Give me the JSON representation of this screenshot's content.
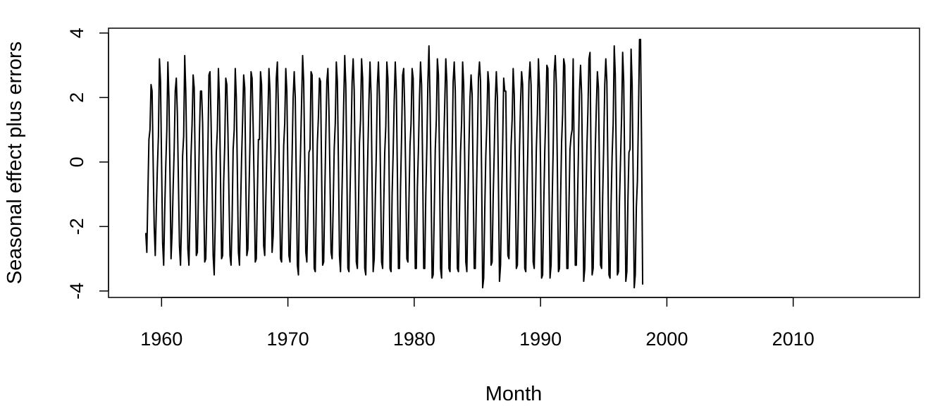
{
  "chart_data": {
    "type": "line",
    "title": "",
    "xlabel": "Month",
    "ylabel": "Seasonal effect plus errors",
    "xlim": [
      1955.8,
      2020.0
    ],
    "ylim": [
      -4.2,
      4.15
    ],
    "x_ticks": [
      1960,
      1970,
      1980,
      1990,
      2000,
      2010
    ],
    "x_tick_labels": [
      "1960",
      "1970",
      "1980",
      "1990",
      "2000",
      "2010"
    ],
    "y_ticks": [
      -4,
      -2,
      0,
      2,
      4
    ],
    "y_tick_labels": [
      "-4",
      "-2",
      "0",
      "2",
      "4"
    ],
    "grid": false,
    "legend": "none",
    "x_start": 1958.75,
    "x_step": 0.0833333,
    "y_values": [
      -2.2,
      -2.8,
      -1.0,
      0.7,
      1.0,
      2.4,
      2.2,
      0.0,
      -2.0,
      -2.9,
      -1.5,
      -0.2,
      0.8,
      3.2,
      2.5,
      0.0,
      -2.5,
      -3.2,
      -1.5,
      -0.1,
      1.0,
      3.1,
      2.0,
      -0.4,
      -3.0,
      -2.2,
      -0.8,
      0.4,
      2.2,
      2.6,
      1.5,
      -0.6,
      -2.6,
      -3.2,
      -1.8,
      0.2,
      0.8,
      3.3,
      2.2,
      0.0,
      -2.7,
      -3.2,
      -1.6,
      0.2,
      1.2,
      2.7,
      2.3,
      -0.3,
      -2.9,
      -2.8,
      -1.0,
      0.9,
      2.2,
      2.2,
      1.2,
      -1.0,
      -3.1,
      -3.0,
      -1.3,
      0.4,
      2.7,
      2.8,
      1.3,
      -0.6,
      -2.9,
      -3.5,
      -1.8,
      0.3,
      1.0,
      2.9,
      1.9,
      -0.5,
      -3.0,
      -2.9,
      -0.6,
      0.5,
      2.6,
      2.4,
      1.0,
      -1.0,
      -2.9,
      -3.2,
      -1.8,
      0.4,
      1.0,
      2.9,
      2.0,
      -0.3,
      -2.8,
      -3.2,
      -1.5,
      0.1,
      1.3,
      2.7,
      2.3,
      -0.5,
      -2.9,
      -2.7,
      -1.0,
      0.6,
      2.8,
      2.6,
      1.1,
      -0.8,
      -3.1,
      -3.0,
      -1.0,
      0.7,
      0.7,
      2.8,
      2.4,
      0.2,
      -2.6,
      -2.9,
      -1.2,
      0.3,
      1.4,
      2.9,
      2.2,
      -0.2,
      -2.8,
      -2.3,
      -0.8,
      0.4,
      2.6,
      3.1,
      1.6,
      -0.7,
      -3.0,
      -3.1,
      -1.4,
      0.5,
      1.2,
      2.9,
      2.2,
      -0.3,
      -2.9,
      -3.1,
      -1.5,
      0.2,
      2.0,
      2.8,
      2.0,
      -0.6,
      -3.2,
      -3.5,
      -1.0,
      0.3,
      1.8,
      3.3,
      2.5,
      0.1,
      -2.8,
      -3.1,
      -1.6,
      0.3,
      0.4,
      2.8,
      2.7,
      -0.1,
      -3.3,
      -3.4,
      -1.2,
      0.6,
      1.4,
      2.6,
      2.5,
      -0.2,
      -3.2,
      -3.1,
      -1.1,
      0.8,
      2.5,
      2.9,
      1.6,
      -0.5,
      -2.8,
      -3.0,
      -1.4,
      0.4,
      1.2,
      3.1,
      2.5,
      0.0,
      -2.9,
      -3.4,
      -1.6,
      0.1,
      1.8,
      3.3,
      2.4,
      -0.2,
      -3.3,
      -3.4,
      -1.0,
      0.6,
      2.5,
      3.2,
      2.2,
      -0.4,
      -3.1,
      -3.3,
      -1.5,
      0.6,
      1.3,
      3.2,
      2.6,
      0.1,
      -3.3,
      -3.5,
      -1.2,
      0.4,
      1.9,
      3.1,
      2.1,
      -0.6,
      -3.4,
      -3.0,
      -1.2,
      0.3,
      2.4,
      3.1,
      2.0,
      -0.5,
      -3.1,
      -3.3,
      -1.4,
      0.3,
      1.1,
      3.1,
      2.6,
      0.2,
      -3.3,
      -3.4,
      -1.0,
      0.3,
      1.9,
      3.1,
      2.2,
      -0.3,
      -3.3,
      -3.3,
      -0.8,
      0.8,
      2.7,
      2.9,
      1.6,
      -0.6,
      -3.0,
      -3.1,
      -1.2,
      0.5,
      1.2,
      2.9,
      2.6,
      0.0,
      -3.3,
      -3.3,
      -0.8,
      0.4,
      2.0,
      3.1,
      2.4,
      -0.1,
      -3.3,
      -3.3,
      -1.0,
      0.5,
      2.5,
      3.6,
      2.0,
      -0.6,
      -3.6,
      -3.5,
      -1.6,
      0.4,
      1.3,
      3.2,
      2.7,
      0.1,
      -3.3,
      -3.6,
      -1.1,
      0.5,
      1.8,
      3.2,
      2.5,
      -0.2,
      -3.3,
      -3.4,
      -1.3,
      0.3,
      2.5,
      3.1,
      2.2,
      -0.4,
      -3.3,
      -3.4,
      -1.6,
      0.3,
      1.2,
      3.1,
      2.4,
      0.0,
      -3.1,
      -3.4,
      -1.3,
      0.5,
      2.0,
      2.7,
      2.1,
      -0.5,
      -3.3,
      -3.3,
      -1.2,
      0.6,
      2.6,
      3.1,
      2.5,
      -0.3,
      -3.9,
      -3.6,
      -1.5,
      0.2,
      1.2,
      2.8,
      2.4,
      0.1,
      -3.2,
      -3.1,
      -1.1,
      0.3,
      1.9,
      2.8,
      2.0,
      -0.7,
      -3.7,
      -3.2,
      -1.2,
      0.5,
      2.6,
      2.2,
      2.2,
      -0.8,
      -2.9,
      -3.0,
      -1.2,
      0.5,
      1.3,
      2.9,
      2.1,
      -0.1,
      -3.3,
      -3.2,
      -1.4,
      0.4,
      1.8,
      2.8,
      2.4,
      -0.3,
      -3.3,
      -3.4,
      -1.1,
      0.5,
      2.5,
      3.1,
      2.4,
      0.0,
      -3.1,
      -3.3,
      -1.6,
      0.4,
      1.5,
      3.2,
      2.3,
      -0.1,
      -3.6,
      -3.5,
      -1.4,
      0.3,
      1.5,
      3.0,
      2.9,
      -0.5,
      -3.6,
      -3.2,
      -1.3,
      0.4,
      2.8,
      3.3,
      2.4,
      -0.2,
      -3.4,
      -3.3,
      -1.2,
      0.6,
      1.5,
      3.2,
      3.0,
      0.1,
      -3.3,
      -3.3,
      -1.3,
      0.4,
      0.8,
      1.0,
      3.2,
      -0.1,
      -3.2,
      -3.2,
      -1.4,
      0.3,
      2.2,
      3.0,
      2.1,
      -0.5,
      -3.7,
      -3.3,
      -1.3,
      0.4,
      1.6,
      3.2,
      3.4,
      -0.1,
      -3.5,
      -3.3,
      -1.4,
      0.4,
      1.7,
      2.8,
      2.3,
      -0.4,
      -3.2,
      -3.3,
      -1.1,
      0.5,
      2.4,
      3.2,
      2.5,
      -0.2,
      -3.5,
      -3.6,
      -1.3,
      0.2,
      1.2,
      3.6,
      2.7,
      -0.1,
      -3.5,
      -3.4,
      -1.2,
      0.1,
      1.4,
      3.4,
      2.5,
      -0.3,
      -3.7,
      -3.4,
      -1.2,
      0.3,
      0.4,
      3.5,
      2.4,
      -0.5,
      -3.9,
      -3.5,
      -1.4,
      -0.6,
      1.4,
      3.8,
      3.8,
      0.4,
      -3.8
    ]
  }
}
